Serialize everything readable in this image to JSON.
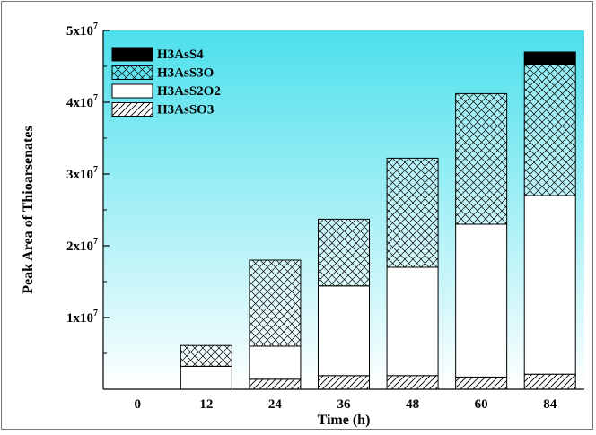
{
  "chart_data": {
    "type": "bar",
    "stacked": true,
    "xlabel": "Time (h)",
    "ylabel": "Peak Area of Thioarsenates",
    "categories": [
      "0",
      "12",
      "24",
      "36",
      "48",
      "60",
      "84"
    ],
    "ylim": [
      0,
      50000000
    ],
    "yticks": [
      {
        "value": 10000000,
        "base": "1x10",
        "exp": "7"
      },
      {
        "value": 20000000,
        "base": "2x10",
        "exp": "7"
      },
      {
        "value": 30000000,
        "base": "3x10",
        "exp": "7"
      },
      {
        "value": 40000000,
        "base": "4x10",
        "exp": "7"
      },
      {
        "value": 50000000,
        "base": "5x10",
        "exp": "7"
      }
    ],
    "series": [
      {
        "name": "H3AsSO3",
        "pattern": "hatch",
        "values": [
          0,
          0,
          1400000,
          1900000,
          1900000,
          1700000,
          2100000
        ]
      },
      {
        "name": "H3AsS2O2",
        "pattern": "white",
        "values": [
          0,
          3200000,
          4600000,
          12500000,
          15100000,
          21300000,
          24900000
        ]
      },
      {
        "name": "H3AsS3O",
        "pattern": "crosshatch",
        "values": [
          0,
          2900000,
          12000000,
          9300000,
          15200000,
          18200000,
          18300000
        ]
      },
      {
        "name": "H3AsS4",
        "pattern": "solid",
        "values": [
          0,
          0,
          0,
          0,
          0,
          0,
          1700000
        ]
      }
    ],
    "legend_position": "top-left",
    "background_gradient": [
      "#4ce0ec",
      "#ffffff"
    ],
    "grid": false
  }
}
